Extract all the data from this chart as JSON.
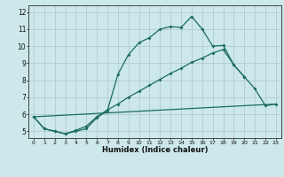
{
  "xlabel": "Humidex (Indice chaleur)",
  "bg_color": "#cce8ea",
  "grid_color": "#b0ccce",
  "line_color": "#1a6b5e",
  "xlim": [
    -0.5,
    23.5
  ],
  "ylim": [
    4.6,
    12.4
  ],
  "xticks": [
    0,
    1,
    2,
    3,
    4,
    5,
    6,
    7,
    8,
    9,
    10,
    11,
    12,
    13,
    14,
    15,
    16,
    17,
    18,
    19,
    20,
    21,
    22,
    23
  ],
  "yticks": [
    5,
    6,
    7,
    8,
    9,
    10,
    11,
    12
  ],
  "line1_x": [
    0,
    1,
    2,
    3,
    4,
    5,
    6,
    7,
    8,
    9,
    10,
    11,
    12,
    13,
    14,
    15,
    16,
    17,
    18,
    19,
    20,
    21,
    22,
    23
  ],
  "line1_y": [
    5.85,
    5.15,
    5.0,
    4.85,
    5.0,
    5.15,
    5.8,
    6.2,
    8.35,
    9.5,
    10.2,
    10.5,
    11.0,
    11.15,
    11.1,
    11.75,
    11.0,
    10.0,
    10.05,
    8.9,
    8.2,
    7.5,
    6.5,
    6.6
  ],
  "line2_x": [
    0,
    1,
    2,
    3,
    4,
    5,
    6,
    7,
    8,
    9,
    10,
    11,
    12,
    13,
    14,
    15,
    16,
    17,
    18,
    19,
    20
  ],
  "line2_y": [
    5.85,
    5.15,
    5.0,
    4.85,
    5.05,
    5.3,
    5.85,
    6.25,
    6.6,
    7.0,
    7.35,
    7.7,
    8.05,
    8.4,
    8.7,
    9.05,
    9.3,
    9.6,
    9.8,
    8.9,
    8.2
  ],
  "line3_x": [
    0,
    23
  ],
  "line3_y": [
    5.85,
    6.6
  ]
}
